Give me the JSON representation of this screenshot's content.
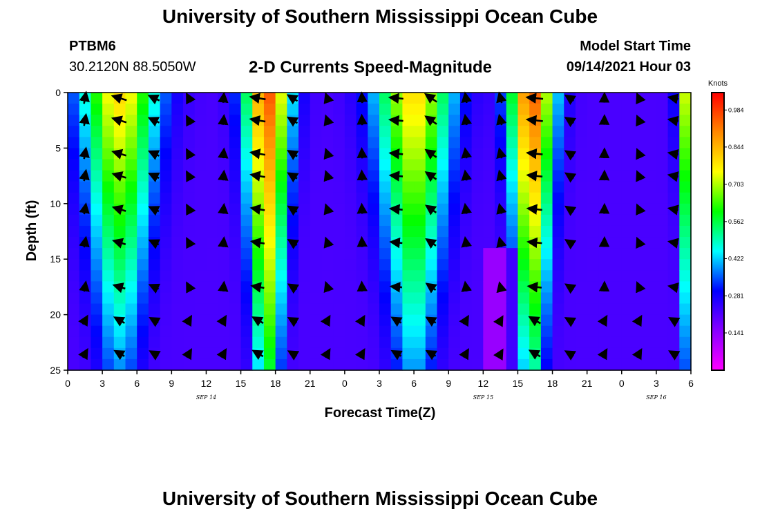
{
  "header": {
    "title": "University of Southern Mississippi Ocean Cube",
    "station_id": "PTBM6",
    "station_coords": "30.2120N  88.5050W",
    "chart_title": "2-D Currents Speed-Magnitude",
    "model_start_label": "Model Start Time",
    "model_start_value": "09/14/2021 Hour 03"
  },
  "footer": {
    "title": "University of Southern Mississippi Ocean Cube"
  },
  "chart_data": {
    "type": "heatmap",
    "title": "2-D Currents Speed-Magnitude",
    "xlabel": "Forecast Time(Z)",
    "ylabel": "Depth (ft)",
    "x_hours": [
      0,
      3,
      6,
      9,
      12,
      15,
      18,
      21,
      24,
      27,
      30,
      33,
      36,
      39,
      42,
      45,
      48,
      51,
      54
    ],
    "x_tick_labels": [
      "0",
      "3",
      "6",
      "9",
      "12",
      "15",
      "18",
      "21",
      "0",
      "3",
      "6",
      "9",
      "12",
      "15",
      "18",
      "21",
      "0",
      "3",
      "6"
    ],
    "date_labels": [
      {
        "hour": 12,
        "label": "SEP 14"
      },
      {
        "hour": 36,
        "label": "SEP 15"
      },
      {
        "hour": 51,
        "label": "SEP 16"
      }
    ],
    "xlim": [
      0,
      54
    ],
    "ylim": [
      0,
      25
    ],
    "y_ticks": [
      0,
      5,
      10,
      15,
      20,
      25
    ],
    "y_reversed": true,
    "colorbar": {
      "unit_label": "Knots",
      "ticks": [
        "0.984",
        "0.844",
        "0.703",
        "0.562",
        "0.422",
        "0.281",
        "0.141"
      ],
      "range": [
        0,
        1.05
      ],
      "colors": [
        "#ff00ff",
        "#8800ff",
        "#0000ff",
        "#00ffff",
        "#00ff00",
        "#ffff00",
        "#ff8800",
        "#ff0000"
      ]
    },
    "speed_model": {
      "hour_peaks": [
        {
          "hour": 4.5,
          "width": 3.3,
          "surface": 0.8,
          "bottom": 0.38
        },
        {
          "hour": 17.3,
          "width": 2.0,
          "surface": 0.96,
          "bottom": 0.58
        },
        {
          "hour": 30.0,
          "width": 3.3,
          "surface": 0.8,
          "bottom": 0.4
        },
        {
          "hour": 40.2,
          "width": 2.0,
          "surface": 0.96,
          "bottom": 0.52
        },
        {
          "hour": 53.8,
          "width": 0.9,
          "surface": 0.78,
          "bottom": 0.4
        }
      ],
      "background": 0.22
    },
    "vector_rows_depth_ft": [
      0.5,
      2.5,
      5.5,
      7.5,
      10.5,
      13.5,
      17.5,
      20.5,
      23.5
    ],
    "vector_columns_hour": [
      1.5,
      4.5,
      7.5,
      10.5,
      13.5,
      16.5,
      19.5,
      22.5,
      25.5,
      28.5,
      31.5,
      34.5,
      37.5,
      40.5,
      43.5,
      46.5,
      49.5,
      52.5
    ]
  }
}
